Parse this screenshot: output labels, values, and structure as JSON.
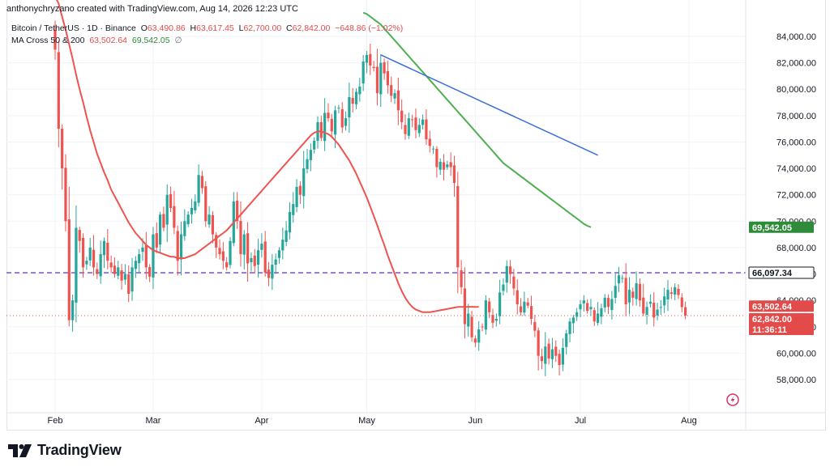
{
  "header": {
    "credit": "anthonychryzano created with TradingView.com, Aug 14, 2026 12:23 UTC"
  },
  "legend": {
    "symbol": "Bitcoin / TetherUS · 1D · Binance",
    "o_label": "O",
    "o_value": "63,490.86",
    "h_label": "H",
    "h_value": "63,617.45",
    "l_label": "L",
    "l_value": "62,700.00",
    "c_label": "C",
    "c_value": "62,842.00",
    "change": "−648.86 (−1.02%)",
    "ma_name": "MA Cross 50 & 200",
    "ma50_value": "63,502.64",
    "ma200_value": "69,542.05",
    "ma_extra": "∅"
  },
  "brand": {
    "name": "TradingView"
  },
  "colors": {
    "up": "#26a69a",
    "down": "#ef5350",
    "ma50": "#ef5350",
    "ma200": "#4caf50",
    "trendline": "#3b6fd8",
    "hline": "#7e57c2",
    "price_tag": "#e34b4b",
    "ma200_tag": "#2e8b3a"
  },
  "chart_data": {
    "type": "candlestick",
    "y_ticks": [
      "58,000.00",
      "60,000.00",
      "62,000.00",
      "64,000.00",
      "66,000.00",
      "68,000.00",
      "70,000.00",
      "72,000.00",
      "74,000.00",
      "76,000.00",
      "78,000.00",
      "80,000.00",
      "82,000.00",
      "84,000.00"
    ],
    "x_ticks": [
      {
        "label": "Feb",
        "day": 0
      },
      {
        "label": "Mar",
        "day": 28
      },
      {
        "label": "Apr",
        "day": 59
      },
      {
        "label": "May",
        "day": 89
      },
      {
        "label": "Jun",
        "day": 120
      },
      {
        "label": "Jul",
        "day": 150
      },
      {
        "label": "Aug",
        "day": 181
      }
    ],
    "ylim": [
      56000,
      86000
    ],
    "closes": [
      83000,
      77000,
      74000,
      70000,
      62500,
      64000,
      69500,
      68500,
      66500,
      67000,
      68000,
      66500,
      66000,
      67500,
      68500,
      67000,
      66500,
      66000,
      66500,
      65500,
      66000,
      64500,
      66500,
      67000,
      67500,
      68000,
      66500,
      65800,
      69000,
      68000,
      70500,
      69500,
      72000,
      71000,
      69500,
      67000,
      69000,
      70000,
      70500,
      71000,
      71500,
      73500,
      72500,
      70000,
      70500,
      69000,
      68000,
      67500,
      67000,
      66500,
      68500,
      71500,
      70000,
      67500,
      69000,
      66800,
      67200,
      66600,
      67800,
      68300,
      66100,
      65700,
      66700,
      67100,
      67800,
      68600,
      69300,
      70700,
      71300,
      72600,
      72000,
      74000,
      74700,
      75400,
      76100,
      77500,
      76300,
      78200,
      77800,
      76800,
      78400,
      78600,
      77100,
      77800,
      79400,
      78900,
      79800,
      80200,
      82100,
      82600,
      81800,
      81600,
      79700,
      82000,
      81200,
      80300,
      79500,
      79700,
      78400,
      77500,
      76600,
      77800,
      77700,
      76900,
      77300,
      77700,
      76200,
      75700,
      75500,
      74100,
      74500,
      73900,
      74300,
      74100,
      72900,
      66500,
      65000,
      62200,
      63000,
      61200,
      60800,
      61800,
      62000,
      64000,
      63100,
      62300,
      62600,
      64600,
      65200,
      66600,
      66000,
      64900,
      63700,
      63100,
      63900,
      63600,
      62600,
      61700,
      59800,
      59400,
      60500,
      59600,
      60300,
      59800,
      59100,
      60400,
      61500,
      62400,
      62700,
      63100,
      63700,
      64000,
      63200,
      63500,
      62400,
      63000,
      63400,
      64200,
      63500,
      64100,
      65100,
      65900,
      65700,
      63700,
      64800,
      64200,
      65300,
      64000,
      63000,
      63500,
      63900,
      62700,
      63300,
      63500,
      64300,
      64800,
      64500,
      65000,
      64400,
      63490,
      62842
    ],
    "ma50": [
      87000,
      86500,
      85500,
      84500,
      83400,
      82300,
      81100,
      80000,
      79000,
      77900,
      76900,
      76000,
      75100,
      74400,
      73700,
      73100,
      72400,
      71900,
      71400,
      70900,
      70400,
      69900,
      69500,
      69100,
      68800,
      68500,
      68200,
      68000,
      67800,
      67700,
      67600,
      67500,
      67400,
      67300,
      67300,
      67200,
      67200,
      67200,
      67300,
      67400,
      67500,
      67700,
      67900,
      68100,
      68300,
      68500,
      68700,
      68900,
      69100,
      69300,
      69600,
      69900,
      70200,
      70500,
      70800,
      71100,
      71400,
      71700,
      72000,
      72300,
      72600,
      72900,
      73200,
      73500,
      73800,
      74100,
      74400,
      74700,
      75000,
      75300,
      75600,
      75900,
      76200,
      76500,
      76700,
      76800,
      76800,
      76700,
      76600,
      76400,
      76100,
      75800,
      75400,
      75000,
      74600,
      74100,
      73600,
      73000,
      72400,
      71800,
      71100,
      70400,
      69700,
      68900,
      68200,
      67400,
      66700,
      66000,
      65300,
      64700,
      64200,
      63800,
      63500,
      63300,
      63200,
      63100,
      63100,
      63100,
      63150,
      63200,
      63250,
      63300,
      63350,
      63400,
      63450,
      63500,
      63500,
      63500,
      63510,
      63510,
      63505,
      63502.64
    ],
    "ma50_start_day": 63,
    "ma200": [
      85800,
      85700,
      85500,
      85300,
      85100,
      84900,
      84600,
      84300,
      84000,
      83700,
      83400,
      83100,
      82800,
      82500,
      82200,
      81900,
      81600,
      81300,
      81000,
      80700,
      80400,
      80100,
      79800,
      79500,
      79200,
      78900,
      78600,
      78300,
      78000,
      77700,
      77400,
      77100,
      76800,
      76500,
      76200,
      75900,
      75600,
      75300,
      75000,
      74700,
      74400,
      74200,
      74000,
      73800,
      73600,
      73400,
      73200,
      73000,
      72800,
      72600,
      72400,
      72200,
      72000,
      71800,
      71600,
      71400,
      71200,
      71000,
      70800,
      70600,
      70400,
      70200,
      70000,
      69800,
      69650,
      69542.05
    ],
    "ma200_start_day": 120,
    "trendline": {
      "from": {
        "day": 93,
        "price": 82600
      },
      "to": {
        "day": 155,
        "price": 75000
      }
    },
    "hline": {
      "price": 66097.34,
      "label": "66,097.34"
    },
    "last_price_line": 62842,
    "price_tags": [
      {
        "label": "69,542.05",
        "price": 69542.05,
        "color": "#2e8b3a"
      },
      {
        "label": "66,097.34",
        "price": 66097.34,
        "color": "#ffffff"
      },
      {
        "label": "63,502.64",
        "price": 63502.64,
        "color": "#e34b4b"
      },
      {
        "label": "62,842.00",
        "price": 62842,
        "color": "#e34b4b"
      },
      {
        "label": "11:36:11",
        "price": null,
        "color": "#e34b4b"
      }
    ]
  }
}
